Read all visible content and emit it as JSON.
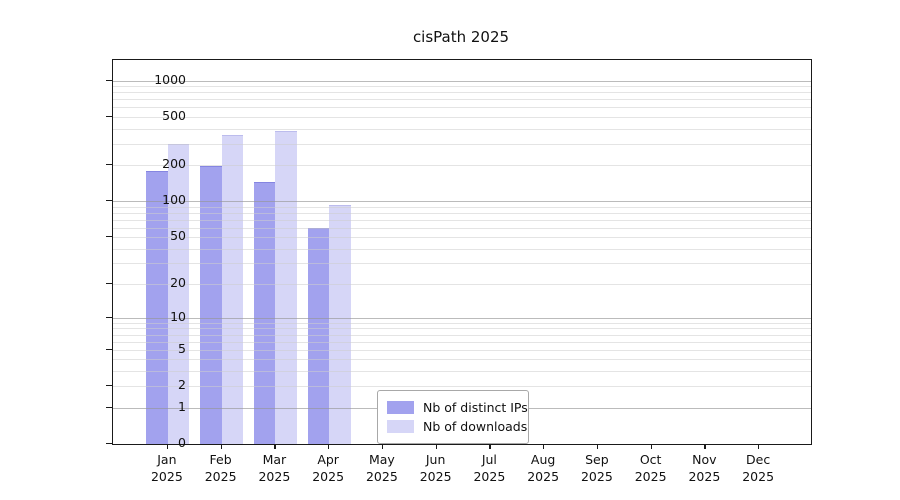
{
  "chart_data": {
    "type": "bar",
    "title": "cisPath 2025",
    "categories": [
      "Jan",
      "Feb",
      "Mar",
      "Apr",
      "May",
      "Jun",
      "Jul",
      "Aug",
      "Sep",
      "Oct",
      "Nov",
      "Dec"
    ],
    "category_year": "2025",
    "series": [
      {
        "name": "Nb of distinct IPs",
        "color": "#a2a2ee",
        "values": [
          175,
          192,
          143,
          59,
          0,
          0,
          0,
          0,
          0,
          0,
          0,
          0
        ]
      },
      {
        "name": "Nb of downloads",
        "color": "#d6d6f7",
        "values": [
          295,
          350,
          376,
          91,
          0,
          0,
          0,
          0,
          0,
          0,
          0,
          0
        ]
      }
    ],
    "yscale": "log10(value+1)",
    "yticks": [
      0,
      1,
      2,
      5,
      10,
      20,
      50,
      100,
      200,
      500,
      1000
    ],
    "major_gridlines": [
      1,
      10,
      100,
      1000
    ],
    "minor_gridlines": [
      3,
      4,
      6,
      7,
      8,
      9,
      30,
      40,
      60,
      70,
      80,
      90,
      300,
      400,
      600,
      700,
      800,
      900
    ],
    "ylim": [
      0,
      1480
    ],
    "xlabel": "",
    "ylabel": "",
    "grid": "horizontal",
    "legend_position": "inside-bottom-center"
  }
}
